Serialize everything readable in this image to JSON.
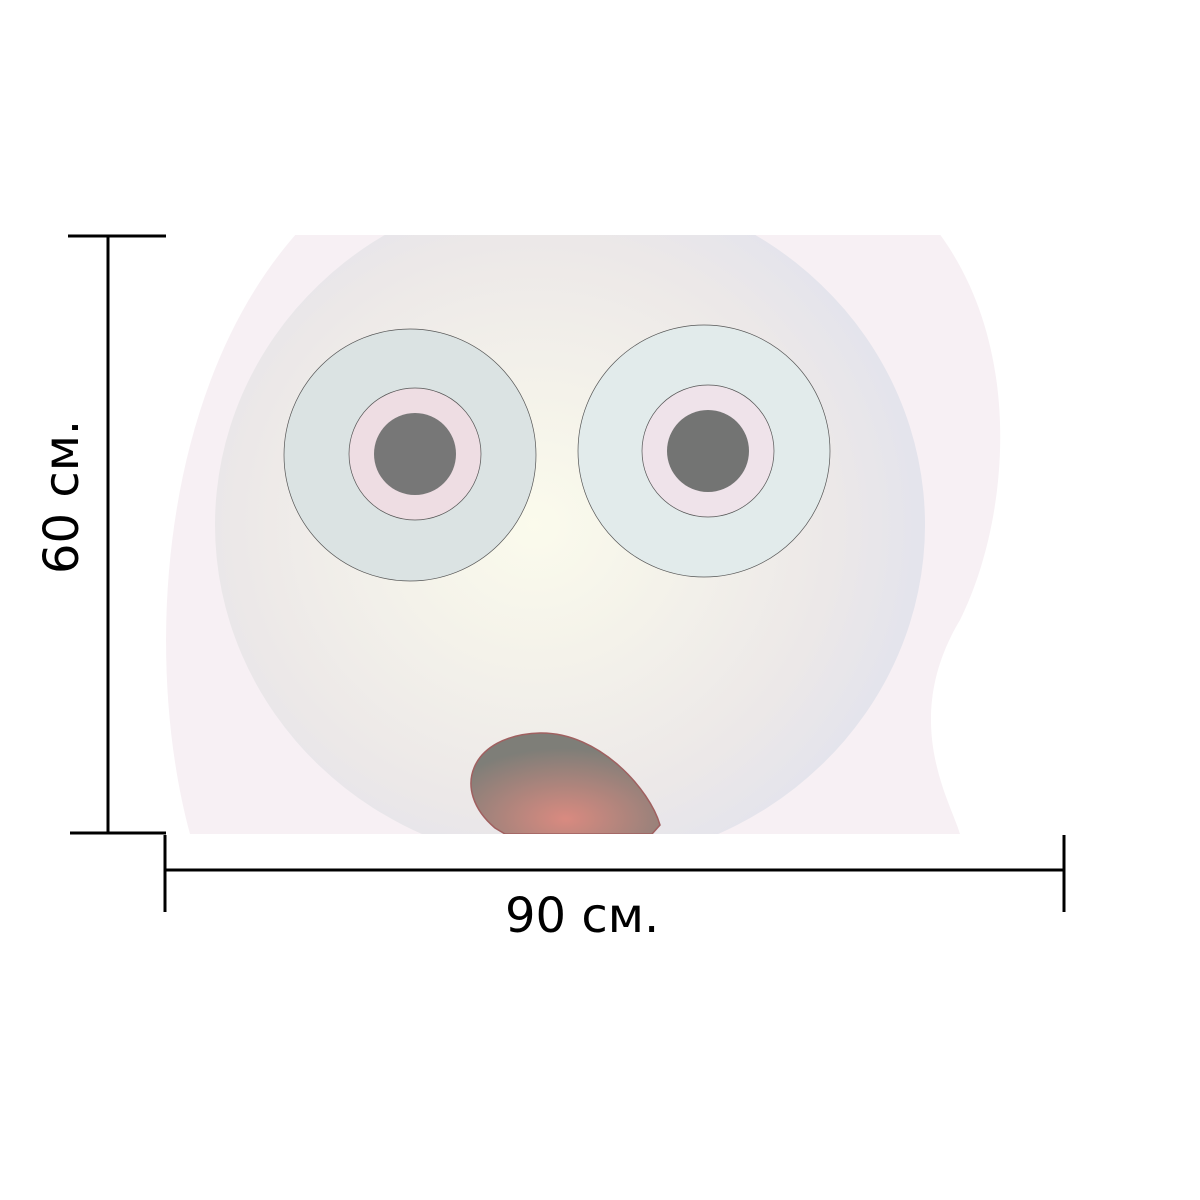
{
  "dimensions": {
    "width_label": "90 см.",
    "height_label": "60 см."
  },
  "colors": {
    "mouth": "#d98a80",
    "pupil": "#777777",
    "line": "#000000"
  }
}
